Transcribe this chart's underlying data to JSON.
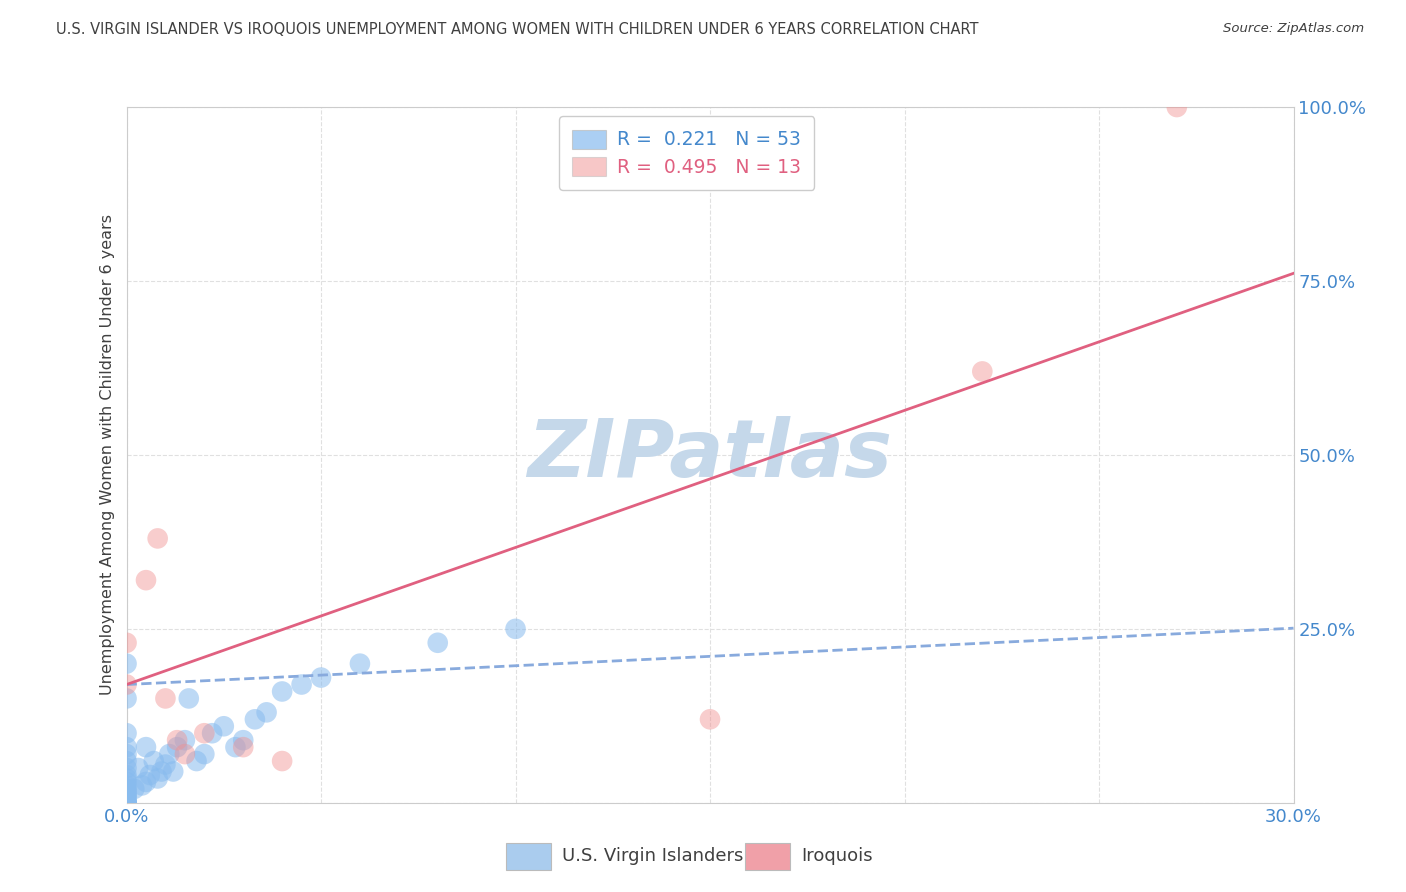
{
  "title": "U.S. VIRGIN ISLANDER VS IROQUOIS UNEMPLOYMENT AMONG WOMEN WITH CHILDREN UNDER 6 YEARS CORRELATION CHART",
  "source": "Source: ZipAtlas.com",
  "ylabel": "Unemployment Among Women with Children Under 6 years",
  "xlim": [
    0.0,
    0.3
  ],
  "ylim": [
    0.0,
    1.0
  ],
  "xticks": [
    0.0,
    0.05,
    0.1,
    0.15,
    0.2,
    0.25,
    0.3
  ],
  "xticklabels": [
    "0.0%",
    "",
    "",
    "",
    "",
    "",
    "30.0%"
  ],
  "yticks": [
    0.0,
    0.25,
    0.5,
    0.75,
    1.0
  ],
  "yticklabels": [
    "",
    "25.0%",
    "50.0%",
    "75.0%",
    "100.0%"
  ],
  "blue_r": "0.221",
  "blue_n": "53",
  "pink_r": "0.495",
  "pink_n": "13",
  "blue_scatter_x": [
    0.0,
    0.0,
    0.0,
    0.0,
    0.0,
    0.0,
    0.0,
    0.0,
    0.0,
    0.0,
    0.0,
    0.0,
    0.0,
    0.0,
    0.0,
    0.0,
    0.0,
    0.0,
    0.0,
    0.0,
    0.0,
    0.0,
    0.0,
    0.0,
    0.002,
    0.003,
    0.004,
    0.005,
    0.005,
    0.006,
    0.007,
    0.008,
    0.009,
    0.01,
    0.011,
    0.012,
    0.013,
    0.015,
    0.016,
    0.018,
    0.02,
    0.022,
    0.025,
    0.028,
    0.03,
    0.033,
    0.036,
    0.04,
    0.045,
    0.05,
    0.06,
    0.08,
    0.1
  ],
  "blue_scatter_y": [
    0.0,
    0.0,
    0.0,
    0.0,
    0.0,
    0.0,
    0.005,
    0.008,
    0.01,
    0.012,
    0.015,
    0.018,
    0.02,
    0.025,
    0.03,
    0.035,
    0.04,
    0.05,
    0.06,
    0.07,
    0.08,
    0.1,
    0.15,
    0.2,
    0.02,
    0.05,
    0.025,
    0.03,
    0.08,
    0.04,
    0.06,
    0.035,
    0.045,
    0.055,
    0.07,
    0.045,
    0.08,
    0.09,
    0.15,
    0.06,
    0.07,
    0.1,
    0.11,
    0.08,
    0.09,
    0.12,
    0.13,
    0.16,
    0.17,
    0.18,
    0.2,
    0.23,
    0.25
  ],
  "pink_scatter_x": [
    0.0,
    0.0,
    0.005,
    0.008,
    0.01,
    0.013,
    0.015,
    0.02,
    0.03,
    0.04,
    0.15,
    0.22,
    0.27
  ],
  "pink_scatter_y": [
    0.17,
    0.23,
    0.32,
    0.38,
    0.15,
    0.09,
    0.07,
    0.1,
    0.08,
    0.06,
    0.12,
    0.62,
    1.0
  ],
  "blue_trend_intercept": 0.17,
  "blue_trend_slope": 0.27,
  "pink_trend_intercept": 0.17,
  "pink_trend_slope": 1.97,
  "watermark_text": "ZIPatlas",
  "watermark_color": "#c5d8ea",
  "title_color": "#404040",
  "axis_label_color": "#4488cc",
  "blue_dot_color": "#88bbee",
  "pink_dot_color": "#f09090",
  "blue_line_color": "#88aadd",
  "pink_line_color": "#e06080",
  "grid_color": "#e0e0e0",
  "spine_color": "#cccccc",
  "legend_blue_text_color": "#4488cc",
  "legend_pink_text_color": "#e06080",
  "bottom_blue_text": "U.S. Virgin Islanders",
  "bottom_pink_text": "Iroquois",
  "bottom_blue_box_color": "#aaccee",
  "bottom_pink_box_color": "#f0a0a8"
}
